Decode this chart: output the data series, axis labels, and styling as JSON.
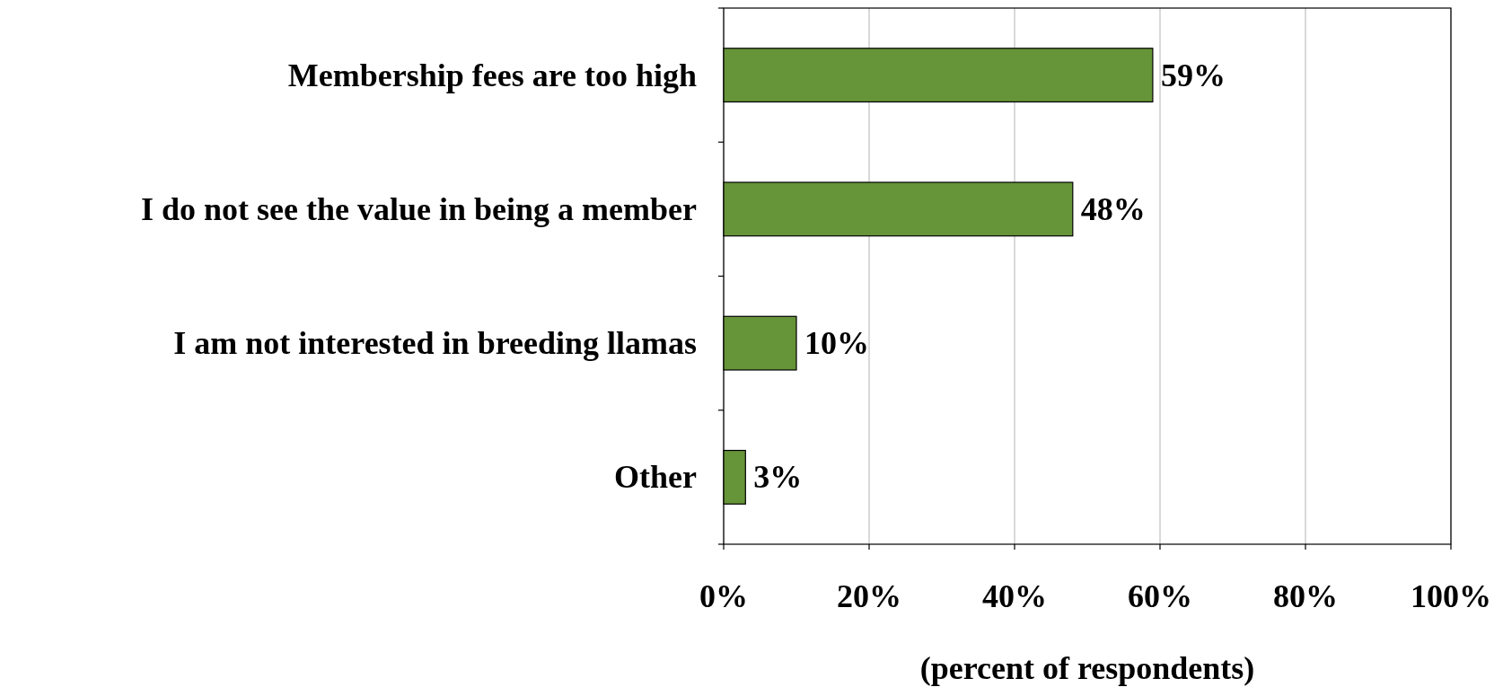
{
  "chart_data": {
    "type": "bar",
    "orientation": "horizontal",
    "xlabel": "(percent of respondents)",
    "categories": [
      "Membership fees are too high",
      "I do not see the value in being a member",
      "I am not interested in breeding llamas",
      "Other"
    ],
    "values": [
      59,
      48,
      10,
      3
    ],
    "value_labels": [
      "59%",
      "48%",
      "10%",
      "3%"
    ],
    "color": "#669438",
    "xlim": [
      0,
      100
    ],
    "xticks": [
      {
        "value": 0,
        "label": "0%"
      },
      {
        "value": 20,
        "label": "20%"
      },
      {
        "value": 40,
        "label": "40%"
      },
      {
        "value": 60,
        "label": "60%"
      },
      {
        "value": 80,
        "label": "80%"
      },
      {
        "value": 100,
        "label": "100%"
      }
    ],
    "grid": "x"
  }
}
